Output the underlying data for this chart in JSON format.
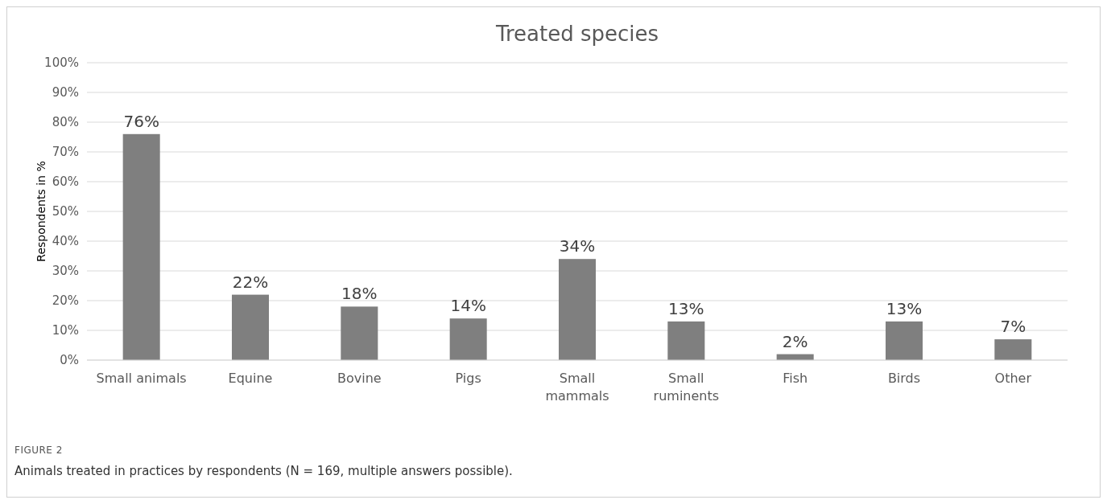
{
  "chart_data": {
    "type": "bar",
    "title": "Treated species",
    "ylabel": "Respondents in %",
    "categories": [
      "Small animals",
      "Equine",
      "Bovine",
      "Pigs",
      "Small\nmammals",
      "Small\nruminents",
      "Fish",
      "Birds",
      "Other"
    ],
    "values": [
      76,
      22,
      18,
      14,
      34,
      13,
      2,
      13,
      7
    ],
    "color": "#7f7f7f",
    "value_labels": [
      "76%",
      "22%",
      "18%",
      "14%",
      "34%",
      "13%",
      "2%",
      "13%",
      "7%"
    ],
    "ylim": [
      0,
      100
    ],
    "yticks": [
      {
        "value": 0,
        "label": "0%"
      },
      {
        "value": 10,
        "label": "10%"
      },
      {
        "value": 20,
        "label": "20%"
      },
      {
        "value": 30,
        "label": "30%"
      },
      {
        "value": 40,
        "label": "40%"
      },
      {
        "value": 50,
        "label": "50%"
      },
      {
        "value": 60,
        "label": "60%"
      },
      {
        "value": 70,
        "label": "70%"
      },
      {
        "value": 80,
        "label": "80%"
      },
      {
        "value": 90,
        "label": "90%"
      },
      {
        "value": 100,
        "label": "100%"
      }
    ],
    "grid": "y",
    "annotations": [
      "FIGURE 2",
      "Animals treated in practices by respondents (N = 169, multiple answers possible)."
    ]
  }
}
